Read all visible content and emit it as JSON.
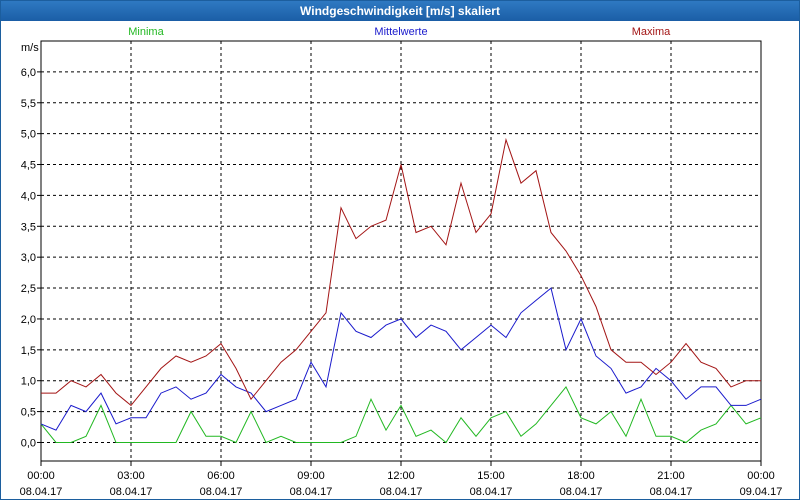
{
  "window": {
    "title": "Windgeschwindigkeit [m/s] skaliert"
  },
  "colors": {
    "minima": "#22b822",
    "mittelwerte": "#1a1acc",
    "maxima": "#a31515",
    "grid": "#000000"
  },
  "chart_data": {
    "type": "line",
    "title": "Windgeschwindigkeit [m/s] skaliert",
    "ylabel": "m/s",
    "ylim": [
      -0.3,
      6.5
    ],
    "xlim": [
      "08.04.17 00:00",
      "09.04.17 00:00"
    ],
    "grid": true,
    "legend": "top",
    "yticks": [
      "0,0",
      "0,5",
      "1,0",
      "1,5",
      "2,0",
      "2,5",
      "3,0",
      "3,5",
      "4,0",
      "4,5",
      "5,0",
      "5,5",
      "6,0"
    ],
    "xticks": [
      {
        "time": "00:00",
        "date": "08.04.17"
      },
      {
        "time": "03:00",
        "date": "08.04.17"
      },
      {
        "time": "06:00",
        "date": "08.04.17"
      },
      {
        "time": "09:00",
        "date": "08.04.17"
      },
      {
        "time": "12:00",
        "date": "08.04.17"
      },
      {
        "time": "15:00",
        "date": "08.04.17"
      },
      {
        "time": "18:00",
        "date": "08.04.17"
      },
      {
        "time": "21:00",
        "date": "08.04.17"
      },
      {
        "time": "00:00",
        "date": "09.04.17"
      }
    ],
    "x_hours": [
      0,
      0.5,
      1,
      1.5,
      2,
      2.5,
      3,
      3.5,
      4,
      4.5,
      5,
      5.5,
      6,
      6.5,
      7,
      7.5,
      8,
      8.5,
      9,
      9.5,
      10,
      10.5,
      11,
      11.5,
      12,
      12.5,
      13,
      13.5,
      14,
      14.5,
      15,
      15.5,
      16,
      16.5,
      17,
      17.5,
      18,
      18.5,
      19,
      19.5,
      20,
      20.5,
      21,
      21.5,
      22,
      22.5,
      23,
      23.5,
      24
    ],
    "series": [
      {
        "name": "Minima",
        "key": "minima",
        "values": [
          0.3,
          0.0,
          0.0,
          0.1,
          0.6,
          0.0,
          0.0,
          0.0,
          0.0,
          0.0,
          0.5,
          0.1,
          0.1,
          0.0,
          0.5,
          0.0,
          0.1,
          0.0,
          0.0,
          0.0,
          0.0,
          0.1,
          0.7,
          0.2,
          0.6,
          0.1,
          0.2,
          0.0,
          0.4,
          0.1,
          0.4,
          0.5,
          0.1,
          0.3,
          0.6,
          0.9,
          0.4,
          0.3,
          0.5,
          0.1,
          0.7,
          0.1,
          0.1,
          0.0,
          0.2,
          0.3,
          0.6,
          0.3,
          0.4
        ]
      },
      {
        "name": "Mittelwerte",
        "key": "mittelwerte",
        "values": [
          0.3,
          0.2,
          0.6,
          0.5,
          0.8,
          0.3,
          0.4,
          0.4,
          0.8,
          0.9,
          0.7,
          0.8,
          1.1,
          0.9,
          0.8,
          0.5,
          0.6,
          0.7,
          1.3,
          0.9,
          2.1,
          1.8,
          1.7,
          1.9,
          2.0,
          1.7,
          1.9,
          1.8,
          1.5,
          1.7,
          1.9,
          1.7,
          2.1,
          2.3,
          2.5,
          1.5,
          2.0,
          1.4,
          1.2,
          0.8,
          0.9,
          1.2,
          1.0,
          0.7,
          0.9,
          0.9,
          0.6,
          0.6,
          0.7
        ]
      },
      {
        "name": "Maxima",
        "key": "maxima",
        "values": [
          0.8,
          0.8,
          1.0,
          0.9,
          1.1,
          0.8,
          0.6,
          0.9,
          1.2,
          1.4,
          1.3,
          1.4,
          1.6,
          1.2,
          0.7,
          1.0,
          1.3,
          1.5,
          1.8,
          2.1,
          3.8,
          3.3,
          3.5,
          3.6,
          4.5,
          3.4,
          3.5,
          3.2,
          4.2,
          3.4,
          3.7,
          4.9,
          4.2,
          4.4,
          3.4,
          3.1,
          2.7,
          2.2,
          1.5,
          1.3,
          1.3,
          1.1,
          1.3,
          1.6,
          1.3,
          1.2,
          0.9,
          1.0,
          1.0
        ]
      }
    ]
  }
}
